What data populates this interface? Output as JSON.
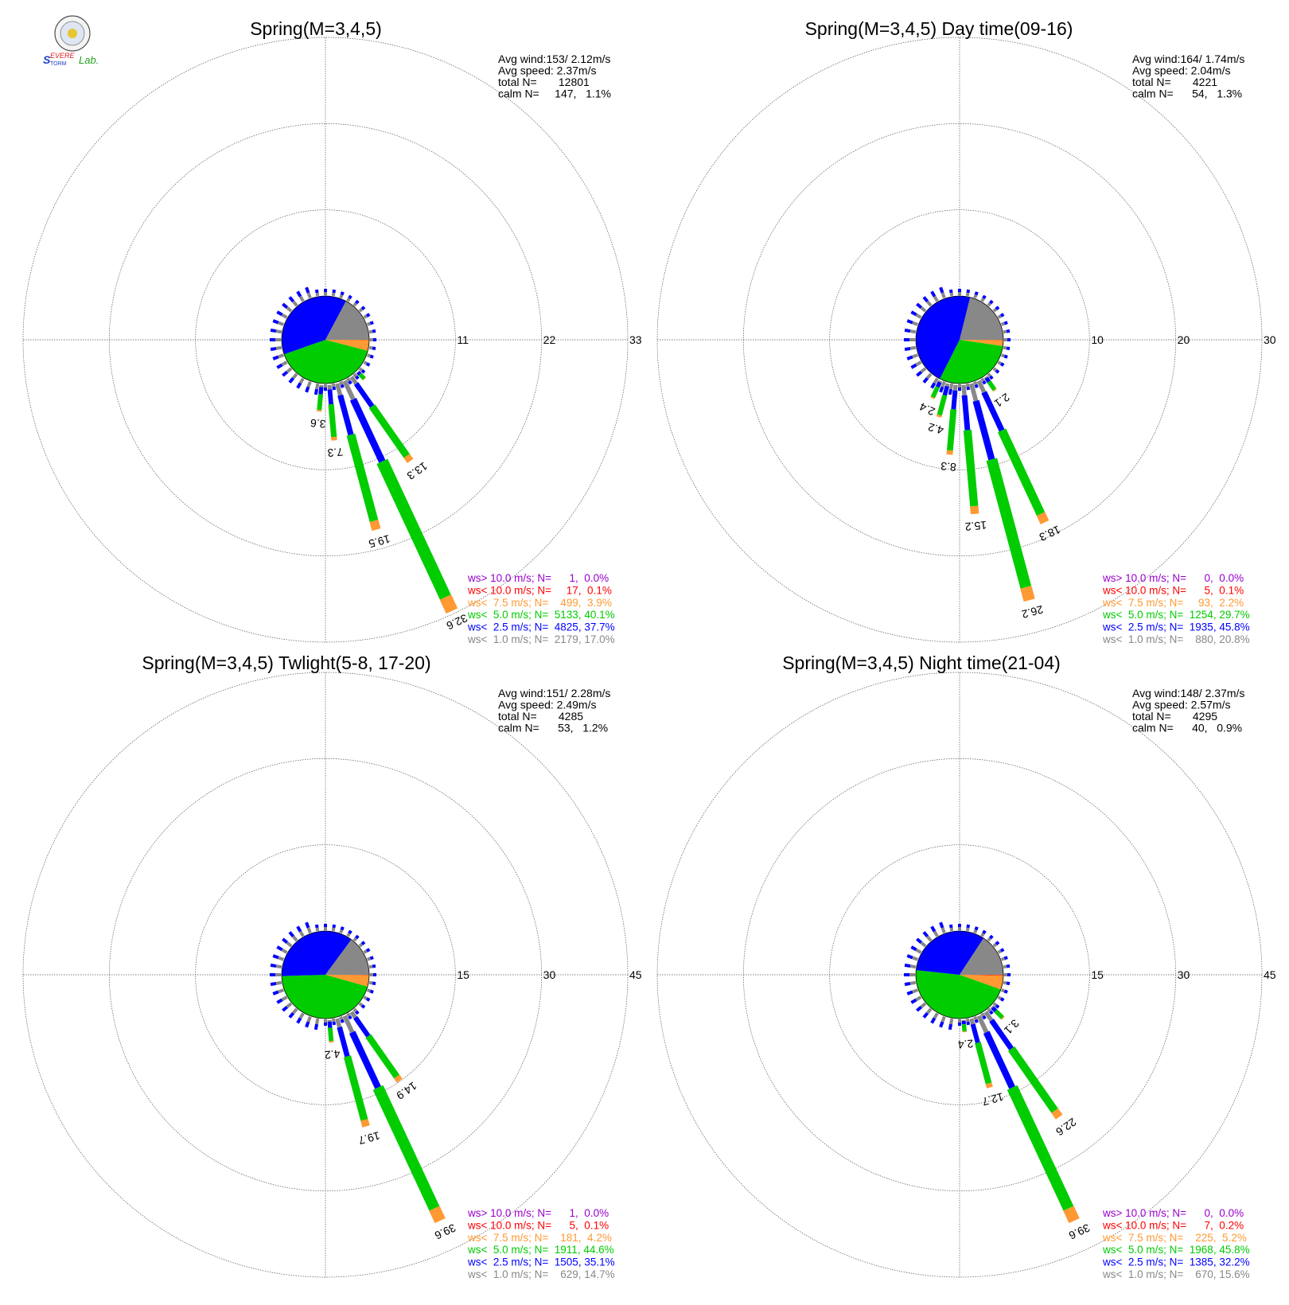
{
  "logo": {
    "lettering": "Severe Storm Lab."
  },
  "legend_colors": [
    "#9900cc",
    "#ff0000",
    "#ff9933",
    "#00cc00",
    "#0000ff",
    "#888888"
  ],
  "chart_data": [
    {
      "type": "wind-rose",
      "title": "Spring(M=3,4,5)",
      "stats": [
        "Avg wind:153/ 2.12m/s",
        "Avg speed: 2.37m/s",
        "total N=       12801",
        "calm N=     147,   1.1%"
      ],
      "rings": [
        11,
        22,
        33
      ],
      "ring_labels": [
        "11",
        "22",
        "33"
      ],
      "legend": [
        "ws> 10.0 m/s; N=      1,  0.0%",
        "ws< 10.0 m/s; N=     17,  0.1%",
        "ws<  7.5 m/s; N=    499,  3.9%",
        "ws<  5.0 m/s; N=  5133, 40.1%",
        "ws<  2.5 m/s; N=  4825, 37.7%",
        "ws<  1.0 m/s; N=  2179, 17.0%"
      ],
      "pie_fractions": [
        0.001,
        0.039,
        0.401,
        0.377,
        0.17
      ],
      "bars": [
        {
          "dir": 135,
          "total": 1.5,
          "label": ""
        },
        {
          "dir": 145,
          "total": 13.3,
          "label": "13.3"
        },
        {
          "dir": 155,
          "total": 32.6,
          "label": "32.6"
        },
        {
          "dir": 165,
          "total": 19.5,
          "label": "19.5"
        },
        {
          "dir": 175,
          "total": 7.3,
          "label": "7.3"
        },
        {
          "dir": 185,
          "total": 3.6,
          "label": "3.6"
        }
      ]
    },
    {
      "type": "wind-rose",
      "title": "Spring(M=3,4,5) Day time(09-16)",
      "stats": [
        "Avg wind:164/ 1.74m/s",
        "Avg speed: 2.04m/s",
        "total N=       4221",
        "calm N=      54,   1.3%"
      ],
      "rings": [
        10,
        20,
        30
      ],
      "ring_labels": [
        "10",
        "20",
        "30"
      ],
      "legend": [
        "ws> 10.0 m/s; N=      0,  0.0%",
        "ws< 10.0 m/s; N=      5,  0.1%",
        "ws<  7.5 m/s; N=     93,  2.2%",
        "ws<  5.0 m/s; N=  1254, 29.7%",
        "ws<  2.5 m/s; N=  1935, 45.8%",
        "ws<  1.0 m/s; N=    880, 20.8%"
      ],
      "pie_fractions": [
        0.001,
        0.022,
        0.297,
        0.458,
        0.208
      ],
      "bars": [
        {
          "dir": 145,
          "total": 2.1,
          "label": "2.1"
        },
        {
          "dir": 155,
          "total": 18.3,
          "label": "18.3"
        },
        {
          "dir": 165,
          "total": 26.2,
          "label": "26.2"
        },
        {
          "dir": 175,
          "total": 15.2,
          "label": "15.2"
        },
        {
          "dir": 185,
          "total": 8.3,
          "label": "8.3"
        },
        {
          "dir": 195,
          "total": 4.2,
          "label": "4.2"
        },
        {
          "dir": 205,
          "total": 2.4,
          "label": "2.4"
        }
      ]
    },
    {
      "type": "wind-rose",
      "title": "Spring(M=3,4,5) Twlight(5-8, 17-20)",
      "stats": [
        "Avg wind:151/ 2.28m/s",
        "Avg speed: 2.49m/s",
        "total N=       4285",
        "calm N=      53,   1.2%"
      ],
      "rings": [
        15,
        30,
        45
      ],
      "ring_labels": [
        "15",
        "30",
        "45"
      ],
      "legend": [
        "ws> 10.0 m/s; N=      1,  0.0%",
        "ws< 10.0 m/s; N=      5,  0.1%",
        "ws<  7.5 m/s; N=    181,  4.2%",
        "ws<  5.0 m/s; N=  1911, 44.6%",
        "ws<  2.5 m/s; N=  1505, 35.1%",
        "ws<  1.0 m/s; N=    629, 14.7%"
      ],
      "pie_fractions": [
        0.001,
        0.042,
        0.446,
        0.351,
        0.147
      ],
      "bars": [
        {
          "dir": 145,
          "total": 14.9,
          "label": "14.9"
        },
        {
          "dir": 155,
          "total": 39.6,
          "label": "39.6"
        },
        {
          "dir": 165,
          "total": 19.7,
          "label": "19.7"
        },
        {
          "dir": 175,
          "total": 4.2,
          "label": "4.2"
        }
      ]
    },
    {
      "type": "wind-rose",
      "title": "Spring(M=3,4,5) Night time(21-04)",
      "stats": [
        "Avg wind:148/ 2.37m/s",
        "Avg speed: 2.57m/s",
        "total N=       4295",
        "calm N=      40,   0.9%"
      ],
      "rings": [
        15,
        30,
        45
      ],
      "ring_labels": [
        "15",
        "30",
        "45"
      ],
      "legend": [
        "ws> 10.0 m/s; N=      0,  0.0%",
        "ws< 10.0 m/s; N=      7,  0.2%",
        "ws<  7.5 m/s; N=    225,  5.2%",
        "ws<  5.0 m/s; N=  1968, 45.8%",
        "ws<  2.5 m/s; N=  1385, 32.2%",
        "ws<  1.0 m/s; N=    670, 15.6%"
      ],
      "pie_fractions": [
        0.002,
        0.052,
        0.458,
        0.322,
        0.156
      ],
      "bars": [
        {
          "dir": 135,
          "total": 3.1,
          "label": "3.1"
        },
        {
          "dir": 145,
          "total": 22.6,
          "label": "22.6"
        },
        {
          "dir": 155,
          "total": 39.6,
          "label": "39.6"
        },
        {
          "dir": 165,
          "total": 12.7,
          "label": "12.7"
        },
        {
          "dir": 175,
          "total": 2.4,
          "label": "2.4"
        }
      ]
    }
  ]
}
